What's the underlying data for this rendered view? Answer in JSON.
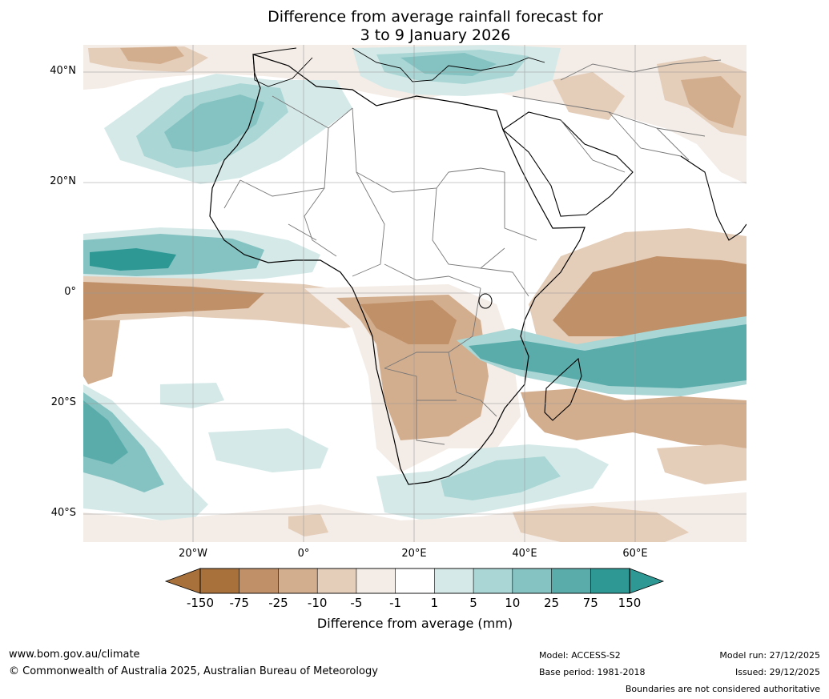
{
  "title": {
    "line1": "Difference from average rainfall forecast for",
    "line2": "3 to 9 January 2026"
  },
  "axes": {
    "lat_labels": [
      "40°N",
      "20°N",
      "0°",
      "20°S",
      "40°S"
    ],
    "lon_labels": [
      "20°W",
      "0°",
      "20°E",
      "40°E",
      "60°E"
    ]
  },
  "colorbar": {
    "ticks": [
      "-150",
      "-75",
      "-25",
      "-10",
      "-5",
      "-1",
      "1",
      "5",
      "10",
      "25",
      "75",
      "150"
    ],
    "colors": [
      "#a8713b",
      "#c09068",
      "#d3ae8e",
      "#e4cdb9",
      "#f4ece6",
      "#ffffff",
      "#d5eae8",
      "#aad6d5",
      "#85c3c2",
      "#5aacab",
      "#2e9895"
    ],
    "label": "Difference from average (mm)"
  },
  "map_colors": {
    "dry_strong": "#c09068",
    "dry_mid": "#d3ae8e",
    "dry_light": "#e4cdb9",
    "dry_faint": "#f4ece6",
    "wet_faint": "#d5eae8",
    "wet_light": "#aad6d5",
    "wet_mid": "#85c3c2",
    "wet_strong": "#5aacab",
    "wet_max": "#2e9895"
  },
  "footer": {
    "website": "www.bom.gov.au/climate",
    "copyright": "© Commonwealth of Australia 2025, Australian Bureau of Meteorology",
    "model": "Model: ACCESS-S2",
    "base_period": "Base period: 1981-2018",
    "model_run": "Model run: 27/12/2025",
    "issued": "Issued: 29/12/2025",
    "disclaimer": "Boundaries are not considered authoritative"
  }
}
